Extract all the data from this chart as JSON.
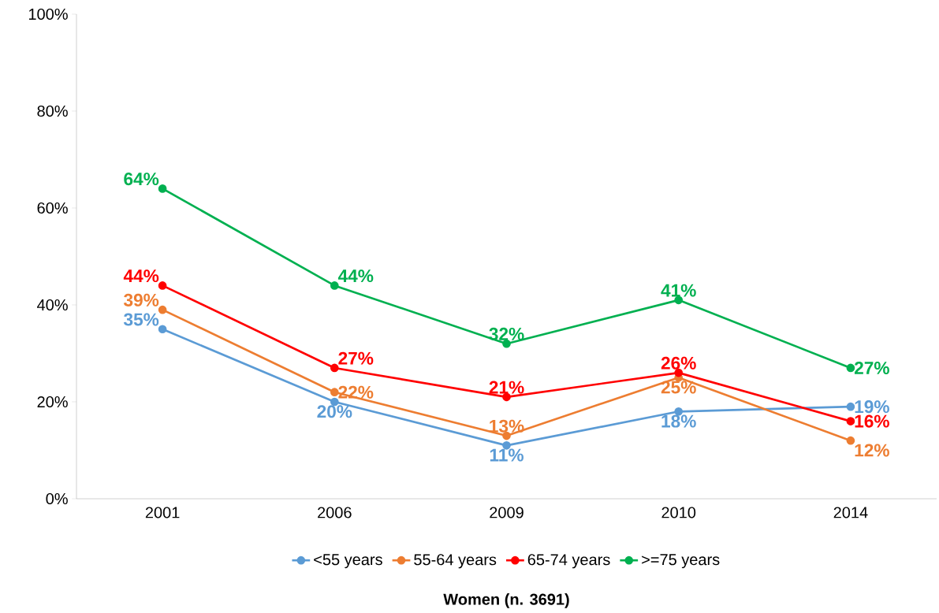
{
  "chart_data": {
    "type": "line",
    "annotations": [
      "**Women (n. 3691)**"
    ],
    "categories": [
      "2001",
      "2006",
      "2009",
      "2010",
      "2014"
    ],
    "series": [
      {
        "name": "<55 years",
        "color": "#5b9bd5",
        "values": [
          35,
          20,
          11,
          18,
          19
        ],
        "value_labels": [
          "35%",
          "20%",
          "11%",
          "18%",
          "19%"
        ]
      },
      {
        "name": "55-64 years",
        "color": "#ed7d31",
        "values": [
          39,
          22,
          13,
          25,
          12
        ],
        "value_labels": [
          "39%",
          "22%",
          "13%",
          "25%",
          "12%"
        ]
      },
      {
        "name": "65-74 years",
        "color": "#ff0000",
        "values": [
          44,
          27,
          21,
          26,
          16
        ],
        "value_labels": [
          "44%",
          "27%",
          "21%",
          "26%",
          "16%"
        ]
      },
      {
        "name": ">=75 years",
        "color": "#00b050",
        "values": [
          64,
          44,
          32,
          41,
          27
        ],
        "value_labels": [
          "64%",
          "44%",
          "32%",
          "41%",
          "27%"
        ]
      }
    ],
    "ylim": [
      0,
      100
    ],
    "yticks": [
      {
        "value": 0,
        "label": "0%"
      },
      {
        "value": 20,
        "label": "20%"
      },
      {
        "value": 40,
        "label": "40%"
      },
      {
        "value": 60,
        "label": "60%"
      },
      {
        "value": 80,
        "label": "80%"
      },
      {
        "value": 100,
        "label": "100%"
      }
    ],
    "legend": "bottom",
    "marker": "circle",
    "line_style": "solid",
    "grid": false
  }
}
